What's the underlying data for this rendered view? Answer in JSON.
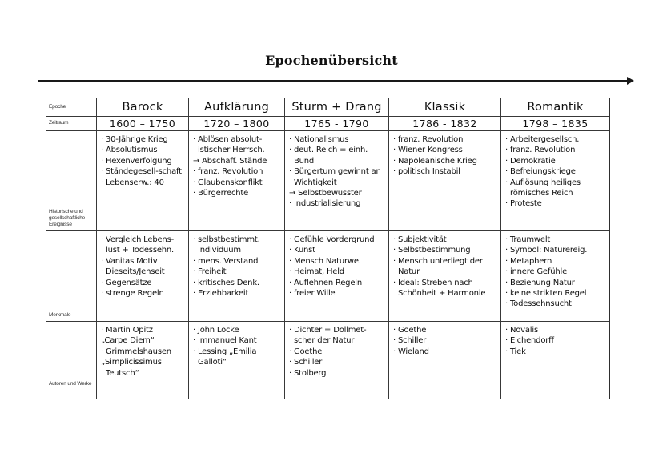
{
  "page": {
    "title": "Epochenübersicht"
  },
  "table": {
    "row_labels": [
      "Epoche",
      "Zeitraum",
      "Historische und gesellschaftliche Ereignisse",
      "Merkmale",
      "Autoren und Werke"
    ],
    "columns": [
      {
        "id": "barock",
        "epoche": "Barock",
        "zeitraum": "1600 – 1750",
        "ereignisse": [
          "· 30-Jährige Krieg",
          "· Absolutismus",
          "· Hexenverfolgung",
          "· Ständegesell-schaft",
          "· Lebenserw.: 40"
        ],
        "merkmale": [
          "· Vergleich Lebens-lust + Todessehn.",
          "· Vanitas Motiv",
          "· Dieseits/Jenseit",
          "· Gegensätze",
          "· strenge Regeln"
        ],
        "autoren": [
          "· Martin Opitz",
          "„Carpe Diem“",
          "· Grimmelshausen",
          "„Simplicissimus Teutsch“"
        ]
      },
      {
        "id": "aufklaerung",
        "epoche": "Aufklärung",
        "zeitraum": "1720 – 1800",
        "ereignisse": [
          "· Ablösen absolut-istischer Herrsch.",
          "→ Abschaff. Stände",
          "· franz. Revolution",
          "· Glaubenskonflikt",
          "· Bürgerrechte"
        ],
        "merkmale": [
          "· selbstbestimmt. Individuum",
          "· mens. Verstand",
          "· Freiheit",
          "· kritisches Denk.",
          "· Erziehbarkeit"
        ],
        "autoren": [
          "· John Locke",
          "· Immanuel Kant",
          "· Lessing „Emilia Galloti“"
        ]
      },
      {
        "id": "sturm-und-drang",
        "epoche": "Sturm + Drang",
        "zeitraum": "1765 - 1790",
        "ereignisse": [
          "· Nationalismus",
          "· deut. Reich = einh. Bund",
          "· Bürgertum gewinnt an Wichtigkeit",
          "→ Selbstbewusster",
          "· Industrialisierung"
        ],
        "merkmale": [
          "· Gefühle Vordergrund",
          "· Kunst",
          "· Mensch Naturwe.",
          "· Heimat, Held",
          "· Auflehnen Regeln",
          "· freier Wille"
        ],
        "autoren": [
          "· Dichter = Dollmet-scher der Natur",
          "· Goethe",
          "· Schiller",
          "· Stolberg"
        ]
      },
      {
        "id": "klassik",
        "epoche": "Klassik",
        "zeitraum": "1786 - 1832",
        "ereignisse": [
          "· franz. Revolution",
          "· Wiener Kongress",
          "· Napoleanische Krieg",
          "· politisch Instabil"
        ],
        "merkmale": [
          "· Subjektivität",
          "· Selbstbestimmung",
          "· Mensch unterliegt der Natur",
          "· Ideal: Streben nach Schönheit + Harmonie"
        ],
        "autoren": [
          "· Goethe",
          "· Schiller",
          "· Wieland"
        ]
      },
      {
        "id": "romantik",
        "epoche": "Romantik",
        "zeitraum": "1798 – 1835",
        "ereignisse": [
          "· Arbeitergesellsch.",
          "· franz. Revolution",
          "· Demokratie",
          "· Befreiungskriege",
          "· Auflösung heiliges römisches Reich",
          "· Proteste"
        ],
        "merkmale": [
          "· Traumwelt",
          "· Symbol: Naturereig.",
          "· Metaphern",
          "· innere Gefühle",
          "· Beziehung Natur",
          "· keine strikten Regel",
          "· Todessehnsucht"
        ],
        "autoren": [
          "· Novalis",
          "· Eichendorff",
          "· Tiek"
        ]
      }
    ]
  }
}
